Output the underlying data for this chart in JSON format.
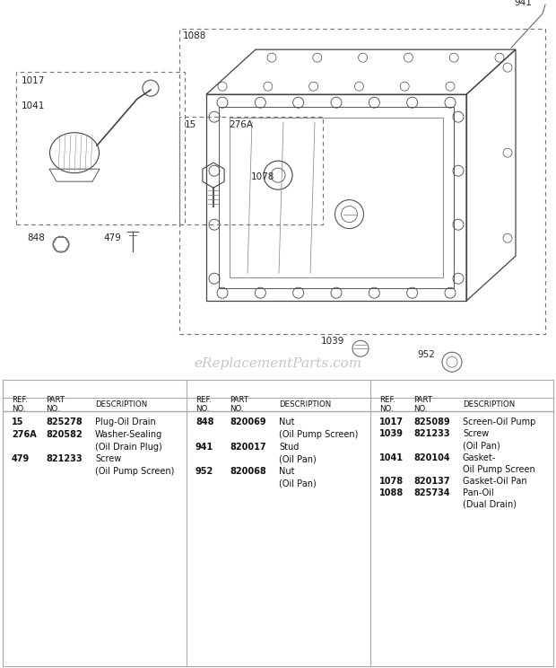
{
  "bg_color": "#ffffff",
  "watermark": "eReplacementParts.com",
  "watermark_color": "#c0c0c0",
  "col1_parts": [
    {
      "ref": "15",
      "part": "825278",
      "desc1": "Plug-Oil Drain",
      "desc2": ""
    },
    {
      "ref": "276A",
      "part": "820582",
      "desc1": "Washer-Sealing",
      "desc2": "(Oil Drain Plug)"
    },
    {
      "ref": "479",
      "part": "821233",
      "desc1": "Screw",
      "desc2": "(Oil Pump Screen)"
    }
  ],
  "col2_parts": [
    {
      "ref": "848",
      "part": "820069",
      "desc1": "Nut",
      "desc2": "(Oil Pump Screen)"
    },
    {
      "ref": "941",
      "part": "820017",
      "desc1": "Stud",
      "desc2": "(Oil Pan)"
    },
    {
      "ref": "952",
      "part": "820068",
      "desc1": "Nut",
      "desc2": "(Oil Pan)"
    }
  ],
  "col3_parts": [
    {
      "ref": "1017",
      "part": "825089",
      "desc1": "Screen-Oil Pump",
      "desc2": ""
    },
    {
      "ref": "1039",
      "part": "821233",
      "desc1": "Screw",
      "desc2": "(Oil Pan)"
    },
    {
      "ref": "1041",
      "part": "820104",
      "desc1": "Gasket-",
      "desc2": "Oil Pump Screen"
    },
    {
      "ref": "1078",
      "part": "820137",
      "desc1": "Gasket-Oil Pan",
      "desc2": ""
    },
    {
      "ref": "1088",
      "part": "825734",
      "desc1": "Pan-Oil",
      "desc2": "(Dual Drain)"
    }
  ]
}
